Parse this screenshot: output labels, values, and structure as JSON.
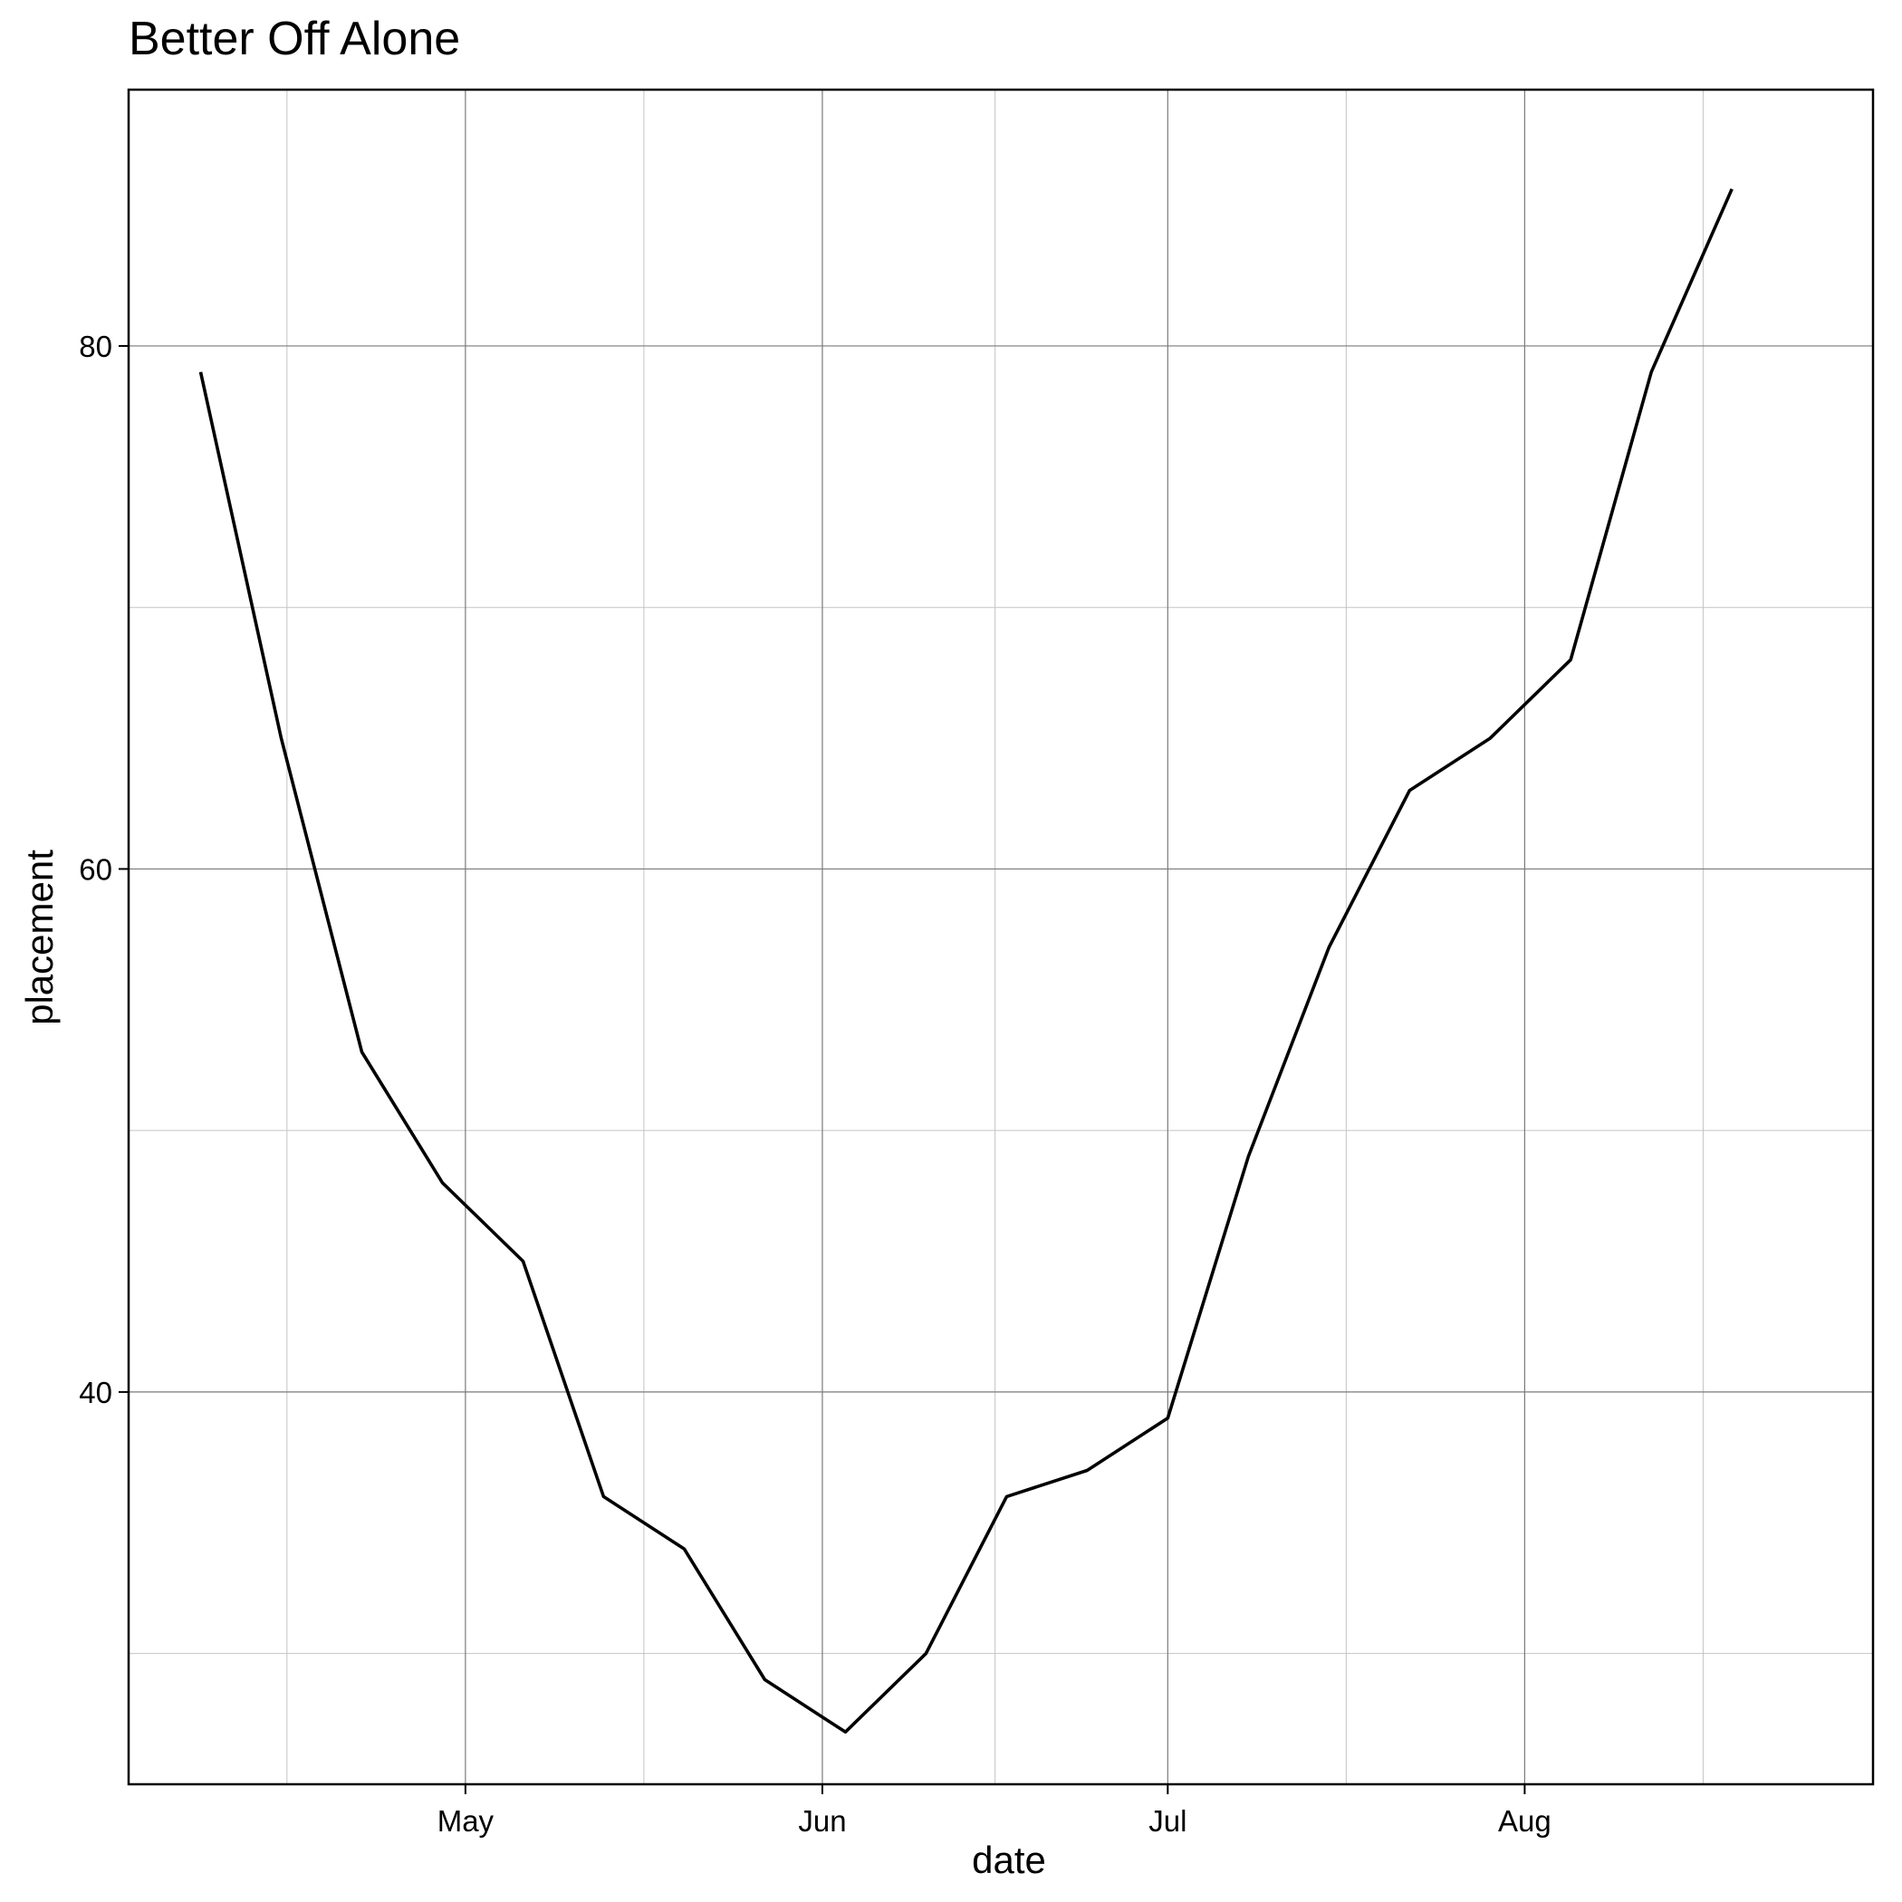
{
  "chart_data": {
    "type": "line",
    "title": "Better Off Alone",
    "xlabel": "date",
    "ylabel": "placement",
    "x_ticks": [
      {
        "label": "May",
        "date": "2000-05-01"
      },
      {
        "label": "Jun",
        "date": "2000-06-01"
      },
      {
        "label": "Jul",
        "date": "2000-07-01"
      },
      {
        "label": "Aug",
        "date": "2000-08-01"
      }
    ],
    "y_ticks": [
      40,
      60,
      80
    ],
    "xlim": [
      "2000-04-08",
      "2000-08-25"
    ],
    "ylim": [
      25,
      89.8
    ],
    "grid": true,
    "line_color": "#000000",
    "series": [
      {
        "points": [
          {
            "x": "2000-04-08",
            "y": 79
          },
          {
            "x": "2000-04-15",
            "y": 65
          },
          {
            "x": "2000-04-22",
            "y": 53
          },
          {
            "x": "2000-04-29",
            "y": 48
          },
          {
            "x": "2000-05-06",
            "y": 45
          },
          {
            "x": "2000-05-13",
            "y": 36
          },
          {
            "x": "2000-05-20",
            "y": 34
          },
          {
            "x": "2000-05-27",
            "y": 29
          },
          {
            "x": "2000-06-03",
            "y": 27
          },
          {
            "x": "2000-06-10",
            "y": 30
          },
          {
            "x": "2000-06-17",
            "y": 36
          },
          {
            "x": "2000-06-24",
            "y": 37
          },
          {
            "x": "2000-07-01",
            "y": 39
          },
          {
            "x": "2000-07-08",
            "y": 49
          },
          {
            "x": "2000-07-15",
            "y": 57
          },
          {
            "x": "2000-07-22",
            "y": 63
          },
          {
            "x": "2000-07-29",
            "y": 65
          },
          {
            "x": "2000-08-05",
            "y": 68
          },
          {
            "x": "2000-08-12",
            "y": 79
          },
          {
            "x": "2000-08-19",
            "y": 86
          }
        ]
      }
    ]
  }
}
